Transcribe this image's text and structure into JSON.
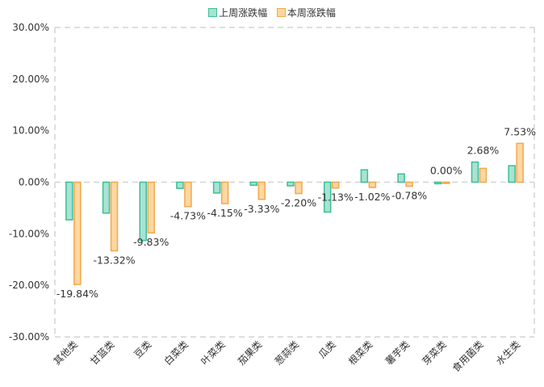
{
  "legend": {
    "series1": "上周涨跌幅",
    "series2": "本周涨跌幅"
  },
  "colors": {
    "series1_fill": "#a8e2d4",
    "series1_stroke": "#3cbf94",
    "series2_fill": "#fcd7a2",
    "series2_stroke": "#f2a84c",
    "axis": "#d4d4d4"
  },
  "chart_data": {
    "type": "bar",
    "categories": [
      "其他类",
      "甘蓝类",
      "豆类",
      "白菜类",
      "叶菜类",
      "茄果类",
      "葱蒜类",
      "瓜类",
      "根菜类",
      "薯芋类",
      "芽菜类",
      "食用菌类",
      "水生类"
    ],
    "series": [
      {
        "name": "上周涨跌幅",
        "values": [
          -7.3,
          -6.0,
          -11.3,
          -1.2,
          -2.1,
          -0.6,
          -0.7,
          -5.8,
          2.4,
          1.6,
          -0.3,
          3.9,
          3.2
        ]
      },
      {
        "name": "本周涨跌幅",
        "values": [
          -19.84,
          -13.32,
          -9.83,
          -4.73,
          -4.15,
          -3.33,
          -2.2,
          -1.13,
          -1.02,
          -0.78,
          0.0,
          2.68,
          7.53
        ]
      }
    ],
    "data_labels": [
      "-19.84%",
      "-13.32%",
      "-9.83%",
      "-4.73%",
      "-4.15%",
      "-3.33%",
      "-2.20%",
      "-1.13%",
      "-1.02%",
      "-0.78%",
      "0.00%",
      "2.68%",
      "7.53%"
    ],
    "ylim": [
      -30,
      30
    ],
    "yticks": [
      "30.00%",
      "20.00%",
      "10.00%",
      "0.00%",
      "-10.00%",
      "-20.00%",
      "-30.00%"
    ],
    "ytick_values": [
      30,
      20,
      10,
      0,
      -10,
      -20,
      -30
    ],
    "legend_position": "top-center",
    "grid": false
  }
}
